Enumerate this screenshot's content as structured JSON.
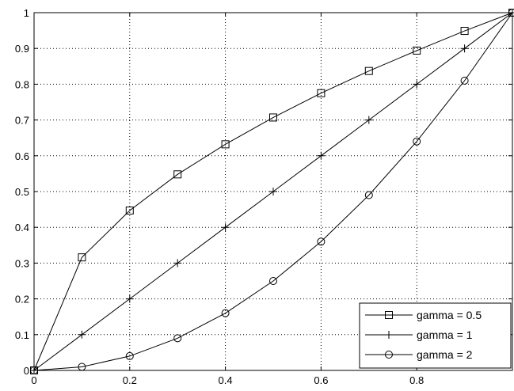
{
  "chart_data": {
    "type": "line",
    "title": "",
    "xlabel": "",
    "ylabel": "",
    "xlim": [
      0,
      1
    ],
    "ylim": [
      0,
      1
    ],
    "grid": true,
    "legend_position": "bottom-right",
    "x": [
      0,
      0.1,
      0.2,
      0.3,
      0.4,
      0.5,
      0.6,
      0.7,
      0.8,
      0.9,
      1
    ],
    "xticks": [
      0,
      0.2,
      0.4,
      0.6,
      0.8
    ],
    "xtick_labels": [
      "0",
      "0.2",
      "0.4",
      "0.6",
      "0.8"
    ],
    "yticks": [
      0,
      0.1,
      0.2,
      0.3,
      0.4,
      0.5,
      0.6,
      0.7,
      0.8,
      0.9,
      1
    ],
    "ytick_labels": [
      "0",
      "0.1",
      "0.2",
      "0.3",
      "0.4",
      "0.5",
      "0.6",
      "0.7",
      "0.8",
      "0.9",
      "1"
    ],
    "series": [
      {
        "name": "gamma = 0.5",
        "marker": "square",
        "color": "#000000",
        "values": [
          0,
          0.316,
          0.447,
          0.548,
          0.632,
          0.707,
          0.775,
          0.837,
          0.894,
          0.949,
          1
        ]
      },
      {
        "name": "gamma = 1",
        "marker": "plus",
        "color": "#000000",
        "values": [
          0,
          0.1,
          0.2,
          0.3,
          0.4,
          0.5,
          0.6,
          0.7,
          0.8,
          0.9,
          1
        ]
      },
      {
        "name": "gamma = 2",
        "marker": "circle",
        "color": "#000000",
        "values": [
          0,
          0.01,
          0.04,
          0.09,
          0.16,
          0.25,
          0.36,
          0.49,
          0.64,
          0.81,
          1
        ]
      }
    ]
  }
}
